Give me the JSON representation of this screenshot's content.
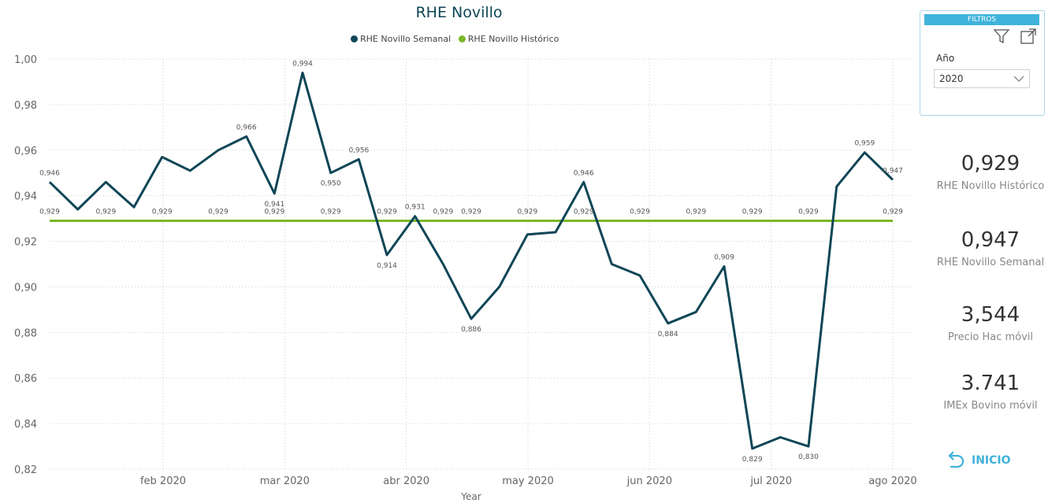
{
  "chart_data": {
    "type": "line",
    "title": "RHE Novillo",
    "xlabel": "Year",
    "ylabel": "",
    "ylim": [
      0.82,
      1.0
    ],
    "y_ticks": [
      "0,82",
      "0,84",
      "0,86",
      "0,88",
      "0,90",
      "0,92",
      "0,94",
      "0,96",
      "0,98",
      "1,00"
    ],
    "x_ticks": [
      "feb 2020",
      "mar 2020",
      "abr 2020",
      "may 2020",
      "jun 2020",
      "jul 2020",
      "ago 2020"
    ],
    "legend_position": "top-center",
    "grid": true,
    "series": [
      {
        "name": "RHE Novillo Semanal",
        "color": "#0f4657",
        "values": [
          0.946,
          0.934,
          0.946,
          0.935,
          0.957,
          0.951,
          0.96,
          0.966,
          0.941,
          0.994,
          0.95,
          0.956,
          0.914,
          0.931,
          0.91,
          0.886,
          0.9,
          0.923,
          0.924,
          0.946,
          0.91,
          0.905,
          0.884,
          0.889,
          0.909,
          0.829,
          0.834,
          0.83,
          0.944,
          0.959,
          0.947
        ],
        "labels": [
          "0,946",
          "",
          "",
          "",
          "",
          "",
          "",
          "0,966",
          "0,941",
          "0,994",
          "0,950",
          "0,956",
          "0,914",
          "0,931",
          "",
          "0,886",
          "",
          "",
          "",
          "0,946",
          "",
          "",
          "0,884",
          "",
          "0,909",
          "0,829",
          "",
          "0,830",
          "",
          "0,959",
          "0,947"
        ]
      },
      {
        "name": "RHE Novillo Histórico",
        "color": "#7ab728",
        "values": [
          0.929,
          0.929,
          0.929,
          0.929,
          0.929,
          0.929,
          0.929,
          0.929,
          0.929,
          0.929,
          0.929,
          0.929,
          0.929,
          0.929,
          0.929,
          0.929,
          0.929,
          0.929,
          0.929,
          0.929,
          0.929,
          0.929,
          0.929,
          0.929,
          0.929,
          0.929,
          0.929,
          0.929,
          0.929,
          0.929,
          0.929
        ],
        "labels": [
          "0,929",
          "",
          "0,929",
          "",
          "0,929",
          "",
          "0,929",
          "",
          "0,929",
          "",
          "0,929",
          "",
          "0,929",
          "",
          "0,929",
          "0,929",
          "",
          "0,929",
          "",
          "0,929",
          "",
          "0,929",
          "",
          "0,929",
          "",
          "0,929",
          "",
          "0,929",
          "",
          "",
          "0,929"
        ]
      }
    ]
  },
  "filters": {
    "header": "FILTROS",
    "year_label": "Año",
    "year_value": "2020"
  },
  "kpis": [
    {
      "value": "0,929",
      "label": "RHE Novillo Histórico"
    },
    {
      "value": "0,947",
      "label": "RHE Novillo Semanal"
    },
    {
      "value": "3,544",
      "label": "Precio Hac móvil"
    },
    {
      "value": "3.741",
      "label": "IMEx Bovino móvil"
    }
  ],
  "home_button": {
    "label": "INICIO"
  }
}
